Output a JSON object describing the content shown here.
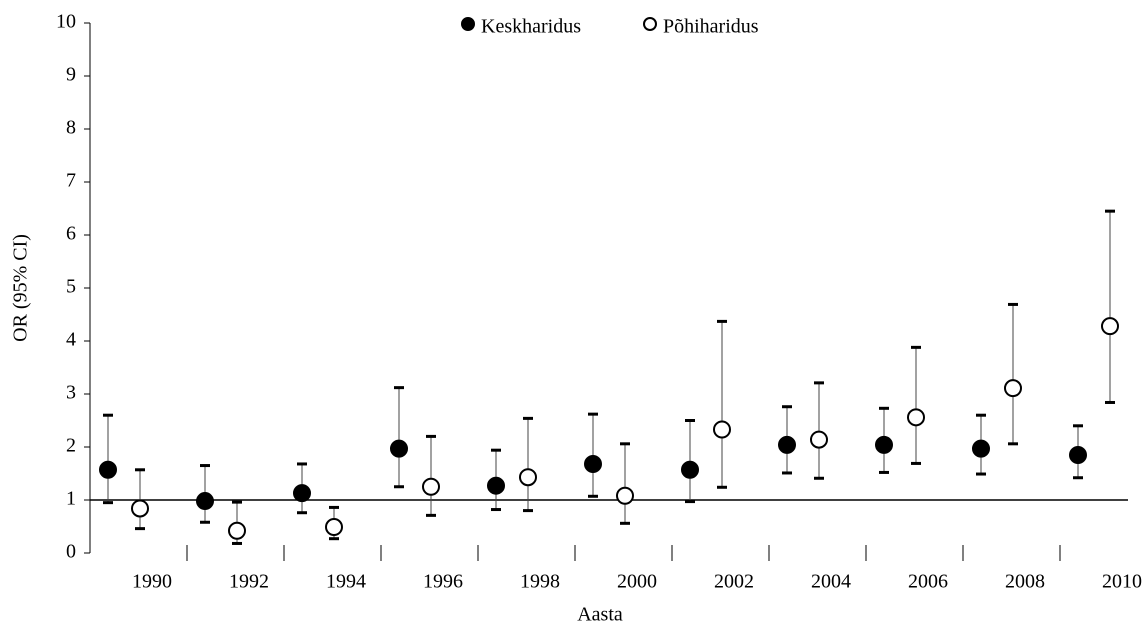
{
  "chart_data": {
    "type": "errorbar",
    "y_label": "OR (95% CI)",
    "x_label": "Aasta",
    "categories": [
      "1990",
      "1992",
      "1994",
      "1996",
      "1998",
      "2000",
      "2002",
      "2004",
      "2006",
      "2008",
      "2010"
    ],
    "x_axis_crosses": 1,
    "ylim": [
      0,
      10
    ],
    "yticks": [
      0,
      1,
      2,
      3,
      4,
      5,
      6,
      7,
      8,
      9,
      10
    ],
    "legend": "top",
    "series": [
      {
        "name": "Keskharidus",
        "color": "#000000",
        "marker": "filled",
        "values": [
          1.57,
          0.98,
          1.13,
          1.97,
          1.27,
          1.68,
          1.57,
          2.04,
          2.04,
          1.97,
          1.85
        ],
        "lower": [
          0.95,
          0.58,
          0.76,
          1.25,
          0.82,
          1.07,
          0.97,
          1.51,
          1.52,
          1.49,
          1.42
        ],
        "upper": [
          2.6,
          1.65,
          1.68,
          3.12,
          1.94,
          2.62,
          2.5,
          2.76,
          2.73,
          2.6,
          2.4
        ]
      },
      {
        "name": "Põhiharidus",
        "color": "#000000",
        "marker": "open",
        "values": [
          0.84,
          0.42,
          0.49,
          1.25,
          1.43,
          1.08,
          2.33,
          2.14,
          2.56,
          3.11,
          4.28
        ],
        "lower": [
          0.46,
          0.18,
          0.27,
          0.71,
          0.8,
          0.56,
          1.24,
          1.41,
          1.69,
          2.06,
          2.84
        ],
        "upper": [
          1.57,
          0.96,
          0.86,
          2.2,
          2.54,
          2.06,
          4.37,
          3.21,
          3.88,
          4.69,
          6.45
        ]
      }
    ]
  }
}
